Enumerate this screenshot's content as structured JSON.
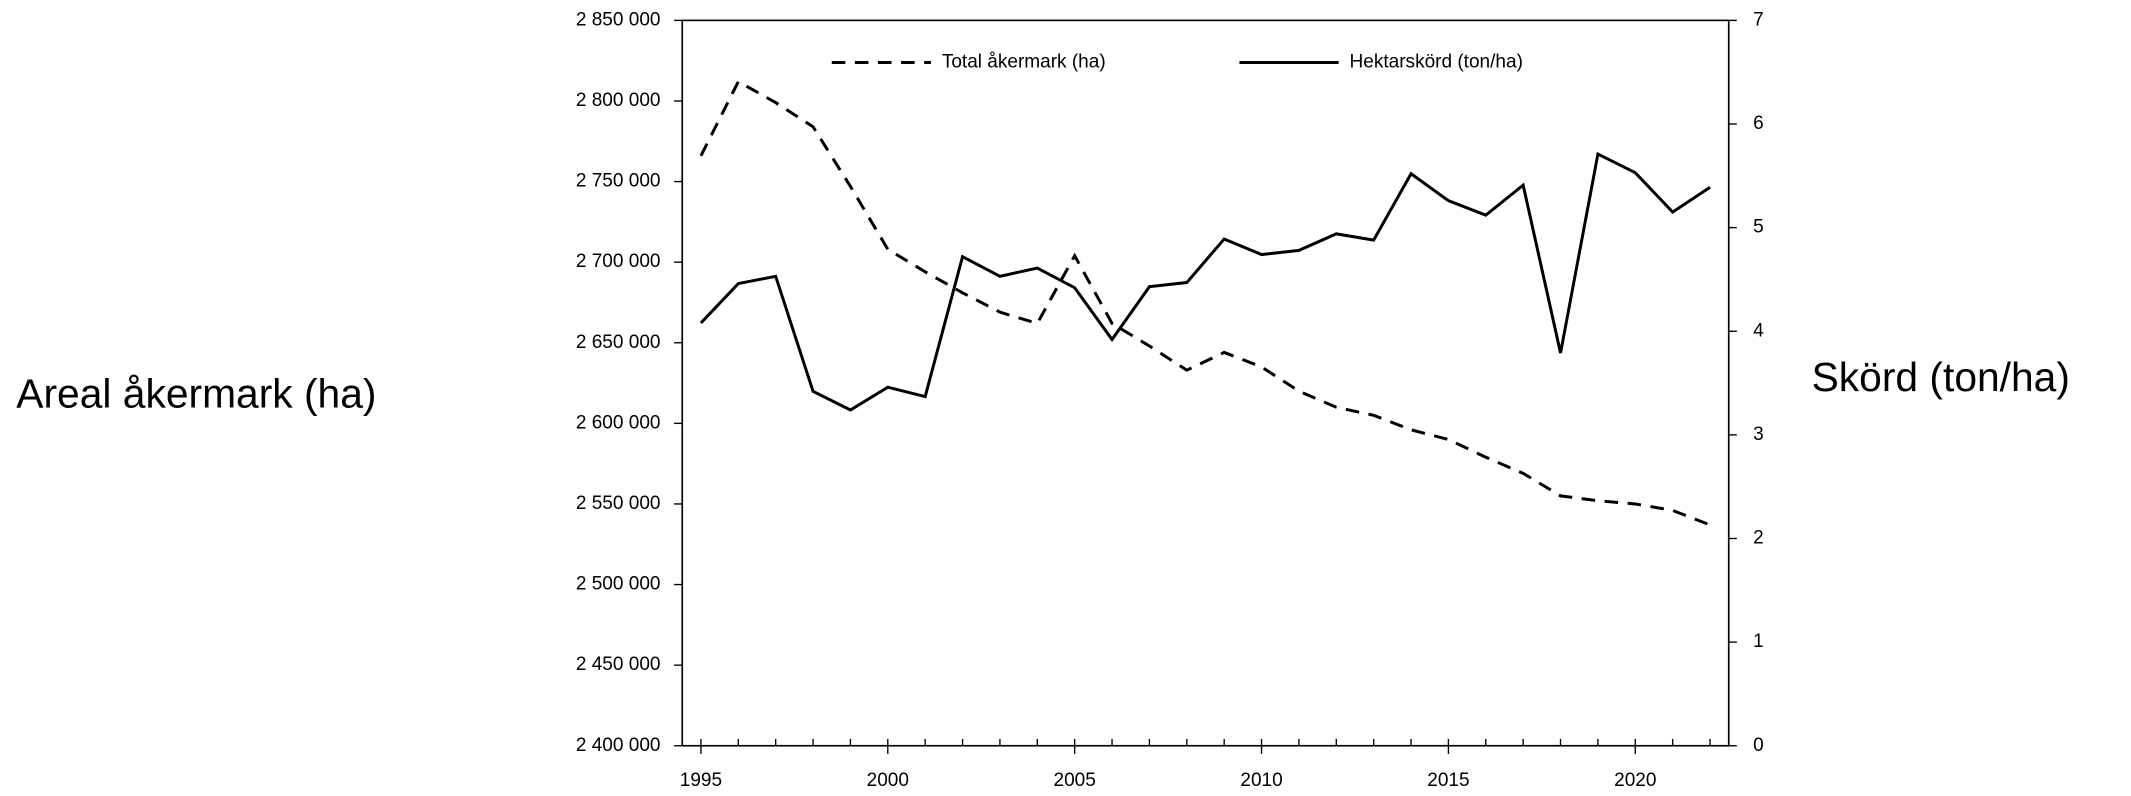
{
  "chart_data": {
    "type": "line",
    "y_label": "Areal åkermark (ha)",
    "y2_label": "Skörd (ton/ha)",
    "x": [
      1995,
      1996,
      1997,
      1998,
      1999,
      2000,
      2001,
      2002,
      2003,
      2004,
      2005,
      2006,
      2007,
      2008,
      2009,
      2010,
      2011,
      2012,
      2013,
      2014,
      2015,
      2016,
      2017,
      2018,
      2019,
      2020,
      2021,
      2022
    ],
    "xlim": [
      1994.5,
      2022.5
    ],
    "xticks": [
      1995,
      2000,
      2005,
      2010,
      2015,
      2020
    ],
    "ylim": [
      2400000,
      2850000
    ],
    "yticks": [
      {
        "value": 2400000,
        "label": "2 400 000"
      },
      {
        "value": 2450000,
        "label": "2 450 000"
      },
      {
        "value": 2500000,
        "label": "2 500 000"
      },
      {
        "value": 2550000,
        "label": "2 550 000"
      },
      {
        "value": 2600000,
        "label": "2 600 000"
      },
      {
        "value": 2650000,
        "label": "2 650 000"
      },
      {
        "value": 2700000,
        "label": "2 700 000"
      },
      {
        "value": 2750000,
        "label": "2 750 000"
      },
      {
        "value": 2800000,
        "label": "2 800 000"
      },
      {
        "value": 2850000,
        "label": "2 850 000"
      }
    ],
    "y2lim": [
      0,
      7
    ],
    "y2ticks": [
      0,
      1,
      2,
      3,
      4,
      5,
      6,
      7
    ],
    "legend": "top",
    "series": [
      {
        "name": "Total åkermark (ha)",
        "color": "#000000",
        "dash": "dashed",
        "values": [
          2766000,
          2812000,
          2799000,
          2784000,
          2747000,
          2708000,
          2694000,
          2681000,
          2669000,
          2662000,
          2704000,
          2662000,
          2648000,
          2633000,
          2644000,
          2635000,
          2620000,
          2610000,
          2605000,
          2596000,
          2590000,
          2579000,
          2569000,
          2555000,
          2552000,
          2550000,
          2546000,
          2537000
        ]
      },
      {
        "name": "Hektarskörd (ton/ha)",
        "color": "#000000",
        "dash": "solid",
        "axis": "y2",
        "values": [
          4.08,
          4.46,
          4.53,
          3.42,
          3.24,
          3.46,
          3.37,
          4.72,
          4.53,
          4.61,
          4.42,
          3.92,
          4.43,
          4.47,
          4.89,
          4.74,
          4.78,
          4.94,
          4.88,
          5.52,
          5.26,
          5.12,
          5.41,
          3.79,
          5.71,
          5.53,
          5.15,
          5.39
        ]
      }
    ]
  }
}
